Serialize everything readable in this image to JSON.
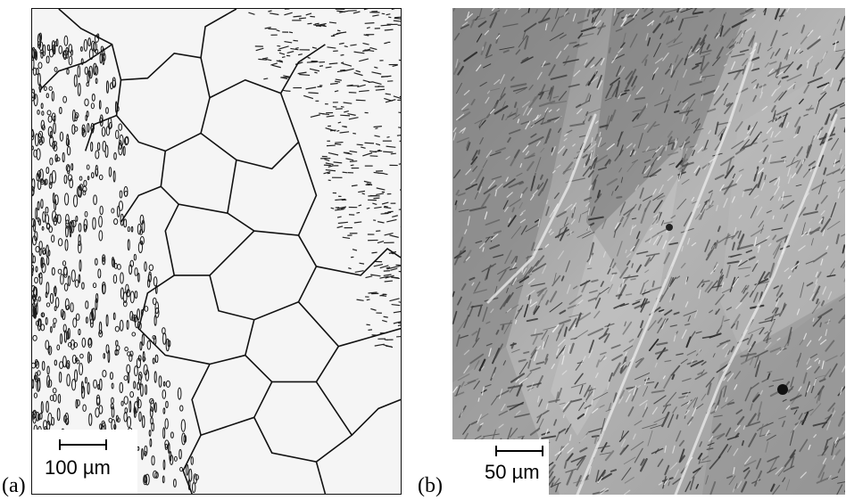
{
  "panels": [
    {
      "label": "(a)",
      "scale_text": "100 µm"
    },
    {
      "label": "(b)",
      "scale_text": "50 µm"
    }
  ],
  "colors": {
    "panel_a_background": "#f4f4f4",
    "panel_a_boundaries": "#111111",
    "panel_b_background": "#b9b9b9",
    "panel_b_dark": "#4a4a4a"
  }
}
